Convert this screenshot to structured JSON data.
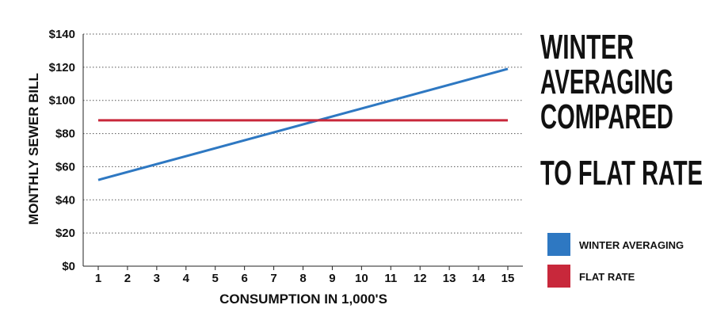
{
  "chart_data": {
    "type": "line",
    "title": [
      "WINTER",
      "AVERAGING",
      "COMPARED",
      "TO FLAT RATE"
    ],
    "xlabel": "CONSUMPTION IN 1,000'S",
    "ylabel": "MONTHLY SEWER BILL",
    "x": [
      1,
      15
    ],
    "x_ticks": [
      "1",
      "2",
      "3",
      "4",
      "5",
      "6",
      "7",
      "8",
      "9",
      "10",
      "11",
      "12",
      "13",
      "14",
      "15"
    ],
    "y_ticks": [
      "$0",
      "$20",
      "$40",
      "$60",
      "$80",
      "$100",
      "$120",
      "$140"
    ],
    "ylim": [
      0,
      140
    ],
    "xlim": [
      1,
      15
    ],
    "grid": "horizontal dotted",
    "legend_position": "right",
    "series": [
      {
        "name": "WINTER AVERAGING",
        "color": "#2e78c2",
        "x": [
          1,
          15
        ],
        "y": [
          52,
          119
        ]
      },
      {
        "name": "FLAT RATE",
        "color": "#c8283b",
        "x": [
          1,
          15
        ],
        "y": [
          88,
          88
        ]
      }
    ]
  }
}
